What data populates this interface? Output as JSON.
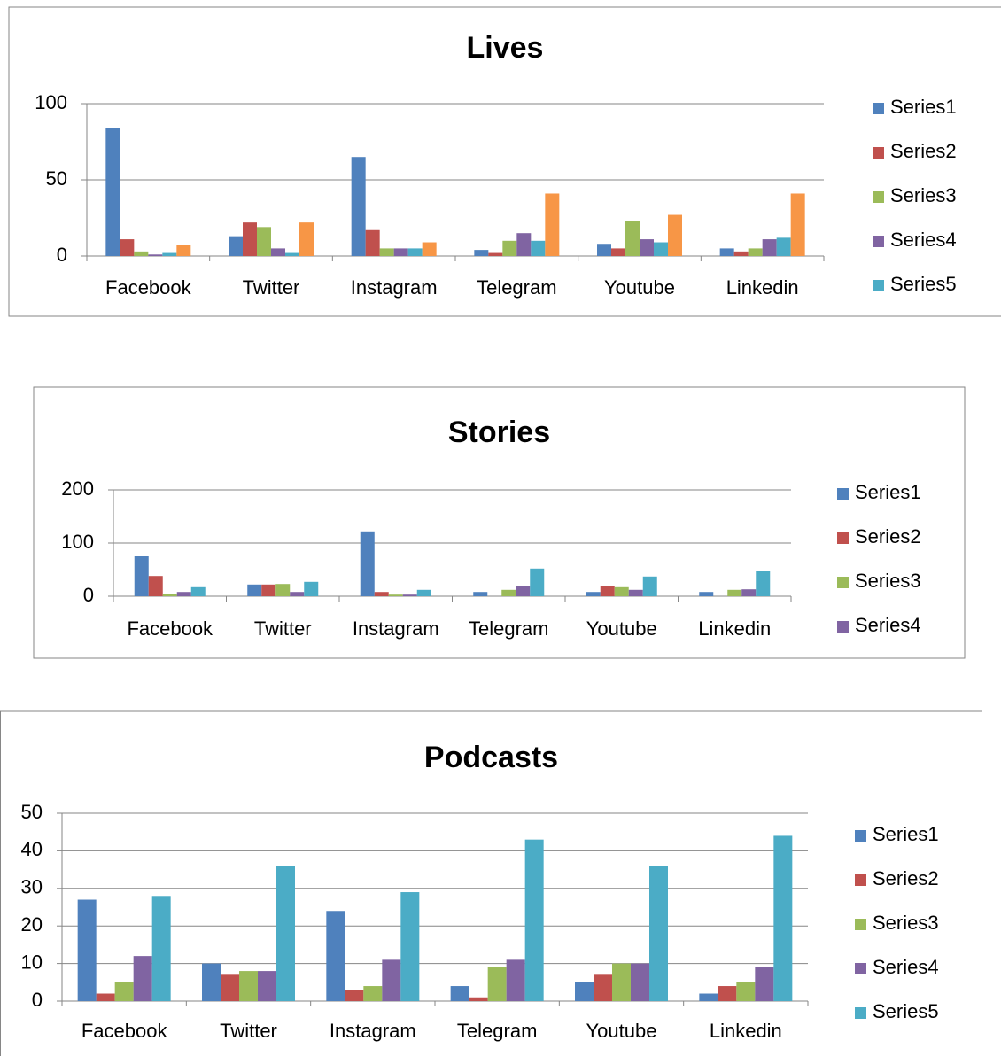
{
  "chart_data": [
    {
      "type": "bar",
      "title": "Lives",
      "categories": [
        "Facebook",
        "Twitter",
        "Instagram",
        "Telegram",
        "Youtube",
        "Linkedin"
      ],
      "ylim": [
        0,
        100
      ],
      "yticks": [
        0,
        50,
        100
      ],
      "grid": true,
      "legend": "right",
      "series": [
        {
          "name": "Series1",
          "color": "#4f81bd",
          "values": [
            84,
            13,
            65,
            4,
            8,
            5
          ]
        },
        {
          "name": "Series2",
          "color": "#c0504d",
          "values": [
            11,
            22,
            17,
            2,
            5,
            3
          ]
        },
        {
          "name": "Series3",
          "color": "#9bbb59",
          "values": [
            3,
            19,
            5,
            10,
            23,
            5
          ]
        },
        {
          "name": "Series4",
          "color": "#8064a2",
          "values": [
            1,
            5,
            5,
            15,
            11,
            11
          ]
        },
        {
          "name": "Series5",
          "color": "#4bacc6",
          "values": [
            2,
            2,
            5,
            10,
            9,
            12
          ]
        },
        {
          "name": null,
          "color": "#f79646",
          "values": [
            7,
            22,
            9,
            41,
            27,
            41
          ]
        }
      ]
    },
    {
      "type": "bar",
      "title": "Stories",
      "categories": [
        "Facebook",
        "Twitter",
        "Instagram",
        "Telegram",
        "Youtube",
        "Linkedin"
      ],
      "ylim": [
        0,
        200
      ],
      "yticks": [
        0,
        100,
        200
      ],
      "grid": true,
      "legend": "right",
      "series": [
        {
          "name": "Series1",
          "color": "#4f81bd",
          "values": [
            75,
            22,
            122,
            8,
            8,
            8
          ]
        },
        {
          "name": "Series2",
          "color": "#c0504d",
          "values": [
            38,
            22,
            8,
            0,
            20,
            0
          ]
        },
        {
          "name": "Series3",
          "color": "#9bbb59",
          "values": [
            5,
            23,
            3,
            12,
            17,
            12
          ]
        },
        {
          "name": "Series4",
          "color": "#8064a2",
          "values": [
            8,
            8,
            3,
            20,
            12,
            13
          ]
        },
        {
          "name": null,
          "color": "#4bacc6",
          "values": [
            17,
            27,
            12,
            52,
            37,
            48
          ]
        }
      ]
    },
    {
      "type": "bar",
      "title": "Podcasts",
      "categories": [
        "Facebook",
        "Twitter",
        "Instagram",
        "Telegram",
        "Youtube",
        "Linkedin"
      ],
      "ylim": [
        0,
        50
      ],
      "yticks": [
        0,
        10,
        20,
        30,
        40,
        50
      ],
      "grid": true,
      "legend": "right",
      "series": [
        {
          "name": "Series1",
          "color": "#4f81bd",
          "values": [
            27,
            10,
            24,
            4,
            5,
            2
          ]
        },
        {
          "name": "Series2",
          "color": "#c0504d",
          "values": [
            2,
            7,
            3,
            1,
            7,
            4
          ]
        },
        {
          "name": "Series3",
          "color": "#9bbb59",
          "values": [
            5,
            8,
            4,
            9,
            10,
            5
          ]
        },
        {
          "name": "Series4",
          "color": "#8064a2",
          "values": [
            12,
            8,
            11,
            11,
            10,
            9
          ]
        },
        {
          "name": "Series5",
          "color": "#4bacc6",
          "values": [
            28,
            36,
            29,
            43,
            36,
            44
          ]
        }
      ]
    }
  ]
}
